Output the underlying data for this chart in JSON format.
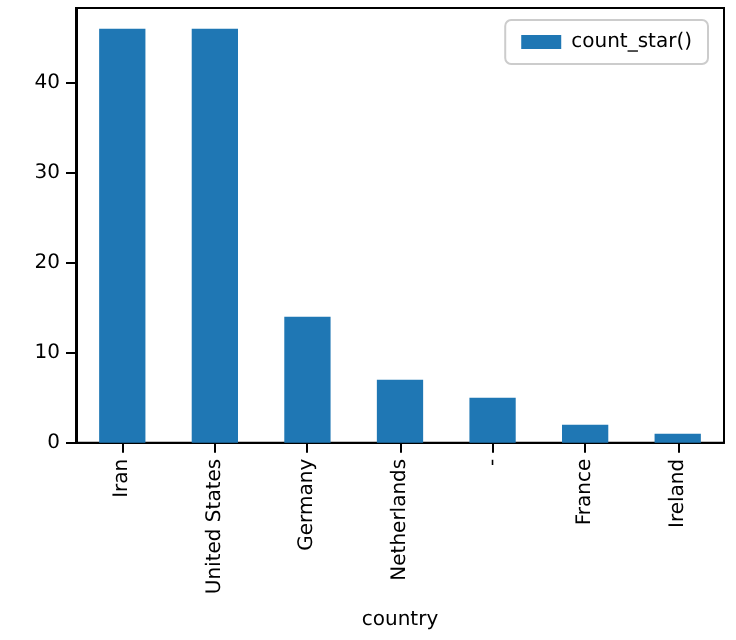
{
  "chart_data": {
    "type": "bar",
    "xlabel": "country",
    "categories": [
      "Iran",
      "United States",
      "Germany",
      "Netherlands",
      "-",
      "France",
      "Ireland"
    ],
    "series": [
      {
        "name": "count_star()",
        "color": "#1f77b4",
        "values": [
          46,
          46,
          14,
          7,
          5,
          2,
          1
        ]
      }
    ],
    "ylim": [
      0,
      48.3
    ],
    "yticks": [
      0,
      10,
      20,
      30,
      40
    ],
    "grid": false,
    "legend": "top right"
  }
}
